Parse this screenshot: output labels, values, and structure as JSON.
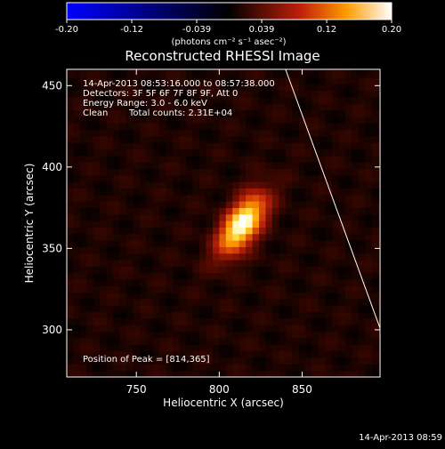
{
  "chart_data": {
    "type": "heatmap",
    "title": "Reconstructed RHESSI Image",
    "xlabel": "Heliocentric X (arcsec)",
    "ylabel": "Heliocentric Y (arcsec)",
    "xlim": [
      708,
      897
    ],
    "ylim": [
      271,
      460
    ],
    "x_ticks": [
      750,
      800,
      850
    ],
    "y_ticks": [
      300,
      350,
      400,
      450
    ],
    "colorbar": {
      "label": "(photons cm⁻² s⁻¹ asec⁻²)",
      "ticks": [
        "-0.20",
        "-0.12",
        "-0.039",
        "0.039",
        "0.12",
        "0.20"
      ],
      "range": [
        -0.2,
        0.2
      ]
    },
    "annotations": {
      "time_range": "14-Apr-2013 08:53:16.000 to 08:57:38.000",
      "detectors": "Detectors: 3F 5F 6F 7F 8F 9F, Att 0",
      "energy": "Energy Range: 3.0 - 6.0 keV",
      "clean_label": "Clean",
      "counts": "Total counts: 2.31E+04",
      "peak_label": "Position of Peak = [814,365]"
    },
    "peak": {
      "x": 814,
      "y": 365,
      "value": 0.2
    },
    "background_level": 0.025,
    "limb_line": [
      [
        840,
        460
      ],
      [
        897,
        301
      ]
    ]
  },
  "footer": {
    "timestamp": "14-Apr-2013 08:59"
  }
}
